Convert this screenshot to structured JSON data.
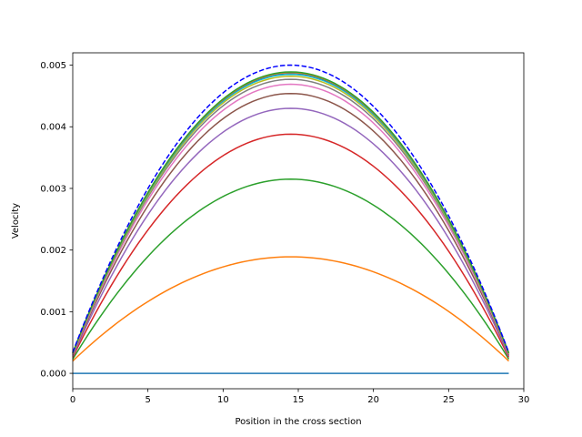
{
  "chart_data": {
    "type": "line",
    "title": "",
    "xlabel": "Position in the cross section",
    "ylabel": "Velocity",
    "xlim": [
      0,
      30
    ],
    "ylim": [
      -0.00025,
      0.0052
    ],
    "xticks": [
      0,
      5,
      10,
      15,
      20,
      25,
      30
    ],
    "yticks": [
      0.0,
      0.001,
      0.002,
      0.003,
      0.004,
      0.005
    ],
    "xtick_labels": [
      "0",
      "5",
      "10",
      "15",
      "20",
      "25",
      "30"
    ],
    "ytick_labels": [
      "0.000",
      "0.001",
      "0.002",
      "0.003",
      "0.004",
      "0.005"
    ],
    "grid": false,
    "legend": "none",
    "x_domain": [
      0,
      29
    ],
    "profile_form": "peak * (1 - ((x - 14.5)/14.5)^2) + edge*((x - 14.5)/14.5)^2",
    "series": [
      {
        "color": "#1f77b4",
        "style": "solid",
        "peak": 0.0,
        "edge": 0.0
      },
      {
        "color": "#ff7f0e",
        "style": "solid",
        "peak": 0.00189,
        "edge": 0.0002
      },
      {
        "color": "#2ca02c",
        "style": "solid",
        "peak": 0.00315,
        "edge": 0.00023
      },
      {
        "color": "#d62728",
        "style": "solid",
        "peak": 0.00388,
        "edge": 0.00026
      },
      {
        "color": "#9467bd",
        "style": "solid",
        "peak": 0.0043,
        "edge": 0.00028
      },
      {
        "color": "#8c564b",
        "style": "solid",
        "peak": 0.00454,
        "edge": 0.0003
      },
      {
        "color": "#e377c2",
        "style": "solid",
        "peak": 0.00469,
        "edge": 0.00031
      },
      {
        "color": "#7f7f7f",
        "style": "solid",
        "peak": 0.00477,
        "edge": 0.00032
      },
      {
        "color": "#bcbd22",
        "style": "solid",
        "peak": 0.00482,
        "edge": 0.00032
      },
      {
        "color": "#17becf",
        "style": "solid",
        "peak": 0.00485,
        "edge": 0.00033
      },
      {
        "color": "#1f77b4",
        "style": "solid",
        "peak": 0.00487,
        "edge": 0.00033
      },
      {
        "color": "#ff7f0e",
        "style": "solid",
        "peak": 0.00488,
        "edge": 0.00033
      },
      {
        "color": "#2ca02c",
        "style": "solid",
        "peak": 0.00489,
        "edge": 0.00033
      },
      {
        "color": "#0000ff",
        "style": "dashed",
        "peak": 0.005,
        "edge": 0.00034
      }
    ]
  }
}
